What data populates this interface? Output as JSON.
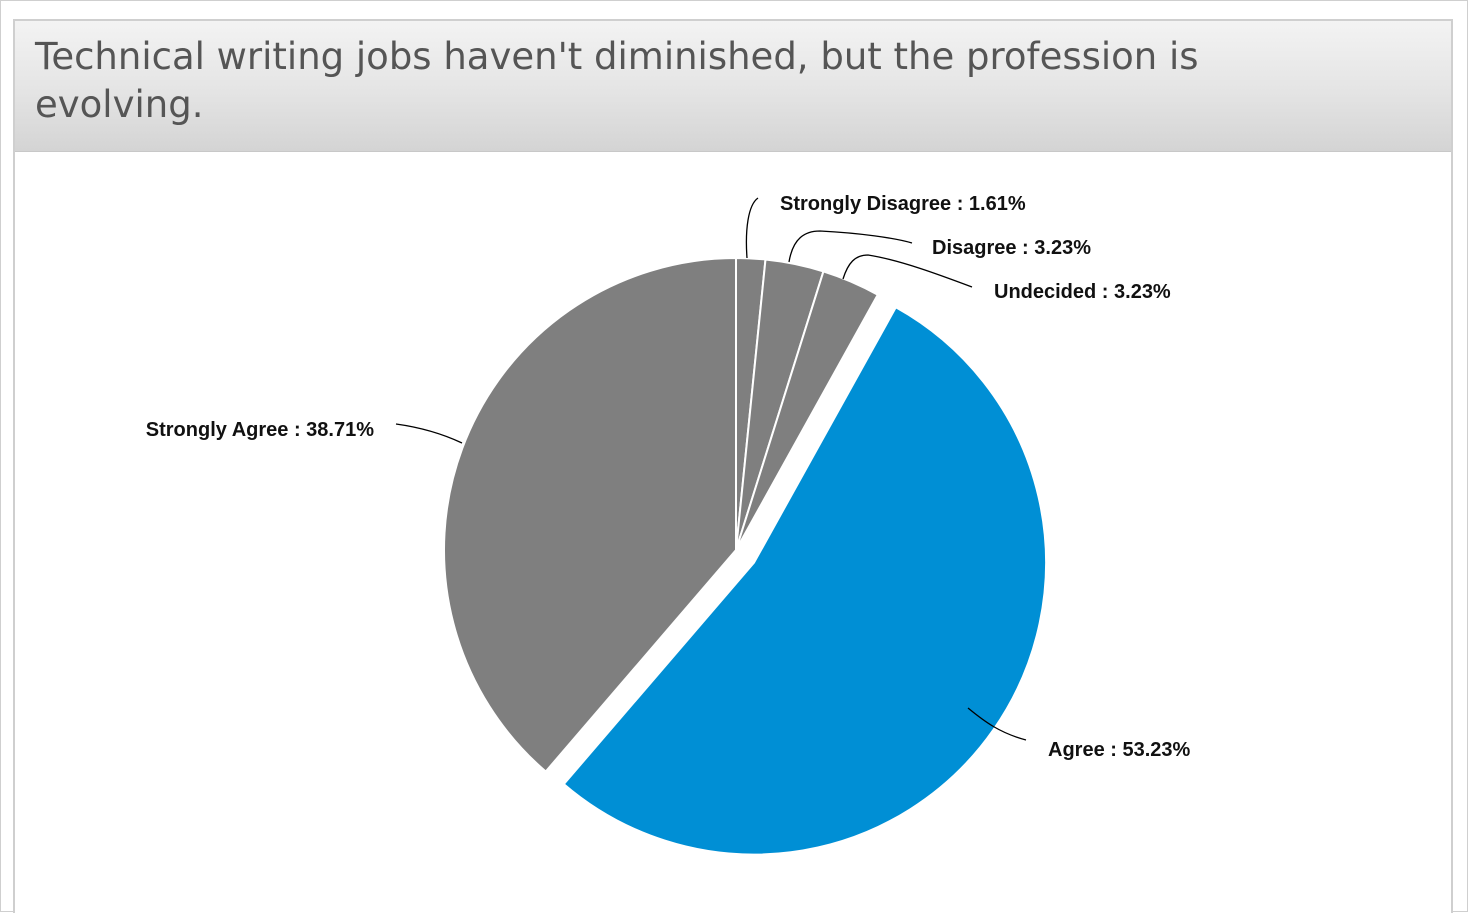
{
  "panel": {
    "title": "Technical writing jobs haven't diminished, but the profession is evolving."
  },
  "colors": {
    "gray_slice": "#7f7f7f",
    "blue_slice": "#008fd5",
    "separator": "#ffffff"
  },
  "chart_data": {
    "type": "pie",
    "title": "Technical writing jobs haven't diminished, but the profession is evolving.",
    "slices": [
      {
        "name": "Strongly Disagree",
        "value": 1.61,
        "label": "Strongly Disagree : 1.61%",
        "color": "#7f7f7f"
      },
      {
        "name": "Disagree",
        "value": 3.23,
        "label": "Disagree : 3.23%",
        "color": "#7f7f7f"
      },
      {
        "name": "Undecided",
        "value": 3.23,
        "label": "Undecided : 3.23%",
        "color": "#7f7f7f"
      },
      {
        "name": "Agree",
        "value": 53.23,
        "label": "Agree : 53.23%",
        "color": "#008fd5",
        "exploded": true
      },
      {
        "name": "Strongly Agree",
        "value": 38.71,
        "label": "Strongly Agree : 38.71%",
        "color": "#7f7f7f"
      }
    ]
  }
}
